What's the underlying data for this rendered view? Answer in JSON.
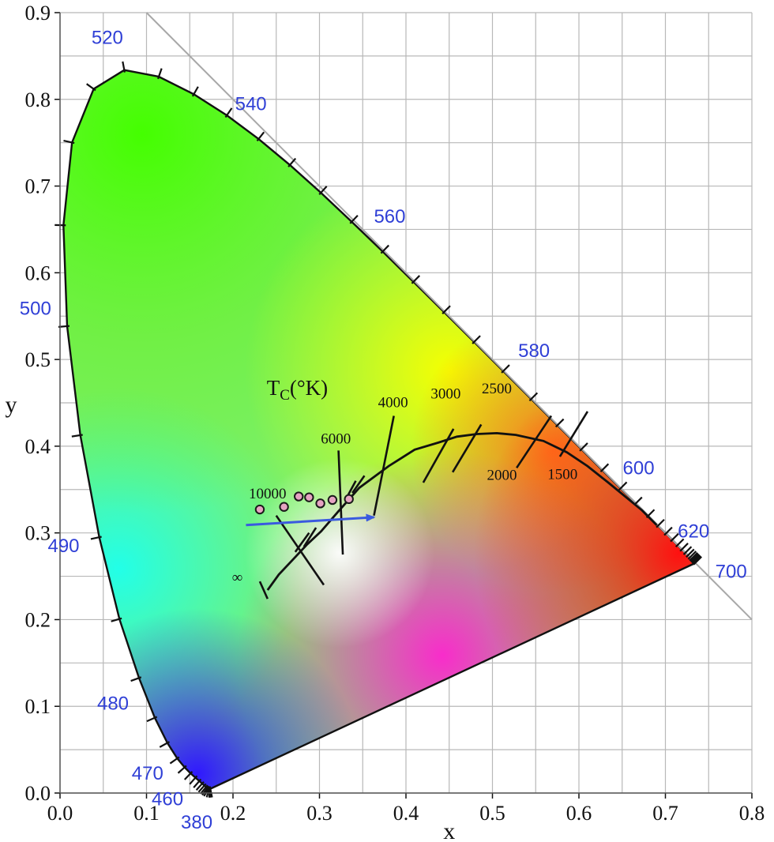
{
  "chart_data": {
    "type": "scatter",
    "xlabel": "x",
    "ylabel": "y",
    "xlim": [
      0.0,
      0.8
    ],
    "ylim": [
      0.0,
      0.9
    ],
    "x_ticks": [
      "0.0",
      "0.1",
      "0.2",
      "0.3",
      "0.4",
      "0.5",
      "0.6",
      "0.7",
      "0.8"
    ],
    "y_ticks": [
      "0.0",
      "0.1",
      "0.2",
      "0.3",
      "0.4",
      "0.5",
      "0.6",
      "0.7",
      "0.8",
      "0.9"
    ],
    "grid": true,
    "spectral_locus": [
      [
        0.1741,
        0.005
      ],
      [
        0.1738,
        0.0049
      ],
      [
        0.1736,
        0.0049
      ],
      [
        0.1733,
        0.0048
      ],
      [
        0.173,
        0.0048
      ],
      [
        0.1726,
        0.0048
      ],
      [
        0.1721,
        0.0048
      ],
      [
        0.1714,
        0.0051
      ],
      [
        0.1703,
        0.0058
      ],
      [
        0.1689,
        0.0069
      ],
      [
        0.1669,
        0.0086
      ],
      [
        0.1644,
        0.0109
      ],
      [
        0.1611,
        0.0138
      ],
      [
        0.1566,
        0.0177
      ],
      [
        0.151,
        0.0227
      ],
      [
        0.144,
        0.0297
      ],
      [
        0.1355,
        0.0399
      ],
      [
        0.1241,
        0.0578
      ],
      [
        0.1096,
        0.0868
      ],
      [
        0.0913,
        0.1327
      ],
      [
        0.0687,
        0.2007
      ],
      [
        0.0454,
        0.295
      ],
      [
        0.0235,
        0.4127
      ],
      [
        0.0082,
        0.5384
      ],
      [
        0.0039,
        0.6548
      ],
      [
        0.0139,
        0.7502
      ],
      [
        0.0389,
        0.812
      ],
      [
        0.0743,
        0.8338
      ],
      [
        0.1142,
        0.8262
      ],
      [
        0.1547,
        0.8059
      ],
      [
        0.1929,
        0.7816
      ],
      [
        0.2296,
        0.7543
      ],
      [
        0.2658,
        0.7243
      ],
      [
        0.3016,
        0.6923
      ],
      [
        0.3373,
        0.6589
      ],
      [
        0.3731,
        0.6245
      ],
      [
        0.4087,
        0.5896
      ],
      [
        0.4441,
        0.5547
      ],
      [
        0.4788,
        0.5202
      ],
      [
        0.5125,
        0.4866
      ],
      [
        0.5448,
        0.4544
      ],
      [
        0.5752,
        0.4242
      ],
      [
        0.6029,
        0.3965
      ],
      [
        0.627,
        0.3725
      ],
      [
        0.6482,
        0.3514
      ],
      [
        0.6658,
        0.334
      ],
      [
        0.6801,
        0.3197
      ],
      [
        0.6915,
        0.3083
      ],
      [
        0.7006,
        0.2993
      ],
      [
        0.7079,
        0.292
      ],
      [
        0.714,
        0.2859
      ],
      [
        0.719,
        0.2809
      ],
      [
        0.723,
        0.277
      ],
      [
        0.726,
        0.274
      ],
      [
        0.7283,
        0.2717
      ],
      [
        0.73,
        0.27
      ],
      [
        0.7311,
        0.2689
      ],
      [
        0.732,
        0.268
      ],
      [
        0.7327,
        0.2673
      ],
      [
        0.7334,
        0.2666
      ],
      [
        0.734,
        0.266
      ],
      [
        0.7344,
        0.2656
      ],
      [
        0.7346,
        0.2654
      ],
      [
        0.7347,
        0.2653
      ]
    ],
    "wavelength_labels": [
      {
        "text": "380",
        "x": 0.174,
        "y": 0.005
      },
      {
        "text": "460",
        "x": 0.144,
        "y": 0.03
      },
      {
        "text": "470",
        "x": 0.124,
        "y": 0.058
      },
      {
        "text": "480",
        "x": 0.091,
        "y": 0.133
      },
      {
        "text": "490",
        "x": 0.045,
        "y": 0.295
      },
      {
        "text": "500",
        "x": 0.008,
        "y": 0.538
      },
      {
        "text": "520",
        "x": 0.074,
        "y": 0.834
      },
      {
        "text": "540",
        "x": 0.23,
        "y": 0.754
      },
      {
        "text": "560",
        "x": 0.373,
        "y": 0.624
      },
      {
        "text": "580",
        "x": 0.513,
        "y": 0.487
      },
      {
        "text": "600",
        "x": 0.627,
        "y": 0.373
      },
      {
        "text": "620",
        "x": 0.691,
        "y": 0.308
      },
      {
        "text": "700",
        "x": 0.735,
        "y": 0.265
      }
    ],
    "planckian_locus": {
      "points": [
        [
          0.24,
          0.234
        ],
        [
          0.253,
          0.252
        ],
        [
          0.27,
          0.27
        ],
        [
          0.285,
          0.286
        ],
        [
          0.302,
          0.302
        ],
        [
          0.322,
          0.325
        ],
        [
          0.346,
          0.352
        ],
        [
          0.38,
          0.377
        ],
        [
          0.41,
          0.396
        ],
        [
          0.437,
          0.404
        ],
        [
          0.459,
          0.411
        ],
        [
          0.482,
          0.414
        ],
        [
          0.505,
          0.415
        ],
        [
          0.527,
          0.413
        ],
        [
          0.559,
          0.406
        ],
        [
          0.586,
          0.393
        ],
        [
          0.61,
          0.377
        ],
        [
          0.634,
          0.358
        ],
        [
          0.656,
          0.34
        ],
        [
          0.673,
          0.326
        ],
        [
          0.69,
          0.309
        ]
      ],
      "title": "Tc(°K)",
      "cct_labels": [
        "10000",
        "6000",
        "4000",
        "3000",
        "2500",
        "2000",
        "1500",
        "∞"
      ],
      "isotherms": [
        {
          "label": "∞",
          "p1": [
            0.231,
            0.244
          ],
          "p2": [
            0.24,
            0.224
          ]
        },
        {
          "label": "10000",
          "p1": [
            0.25,
            0.32
          ],
          "p2": [
            0.305,
            0.24
          ]
        },
        {
          "label": "6000",
          "p1": [
            0.322,
            0.395
          ],
          "p2": [
            0.327,
            0.275
          ]
        },
        {
          "label": "4000",
          "p1": [
            0.386,
            0.435
          ],
          "p2": [
            0.363,
            0.32
          ]
        },
        {
          "label": "3000",
          "p1": [
            0.455,
            0.42
          ],
          "p2": [
            0.42,
            0.358
          ]
        },
        {
          "label": "2500",
          "p1": [
            0.487,
            0.425
          ],
          "p2": [
            0.454,
            0.37
          ]
        },
        {
          "label": "2000",
          "p1": [
            0.568,
            0.435
          ],
          "p2": [
            0.528,
            0.375
          ]
        },
        {
          "label": "1500",
          "p1": [
            0.61,
            0.44
          ],
          "p2": [
            0.578,
            0.388
          ]
        }
      ]
    },
    "series": [
      {
        "type": "scatter",
        "x": [
          0.231,
          0.259,
          0.276,
          0.288,
          0.301,
          0.315,
          0.334
        ],
        "y": [
          0.327,
          0.33,
          0.342,
          0.341,
          0.334,
          0.338,
          0.339
        ],
        "color": "#e6a4c2"
      }
    ],
    "arrow": {
      "from": [
        0.215,
        0.309
      ],
      "to": [
        0.363,
        0.318
      ],
      "color": "#3a5adf"
    }
  }
}
